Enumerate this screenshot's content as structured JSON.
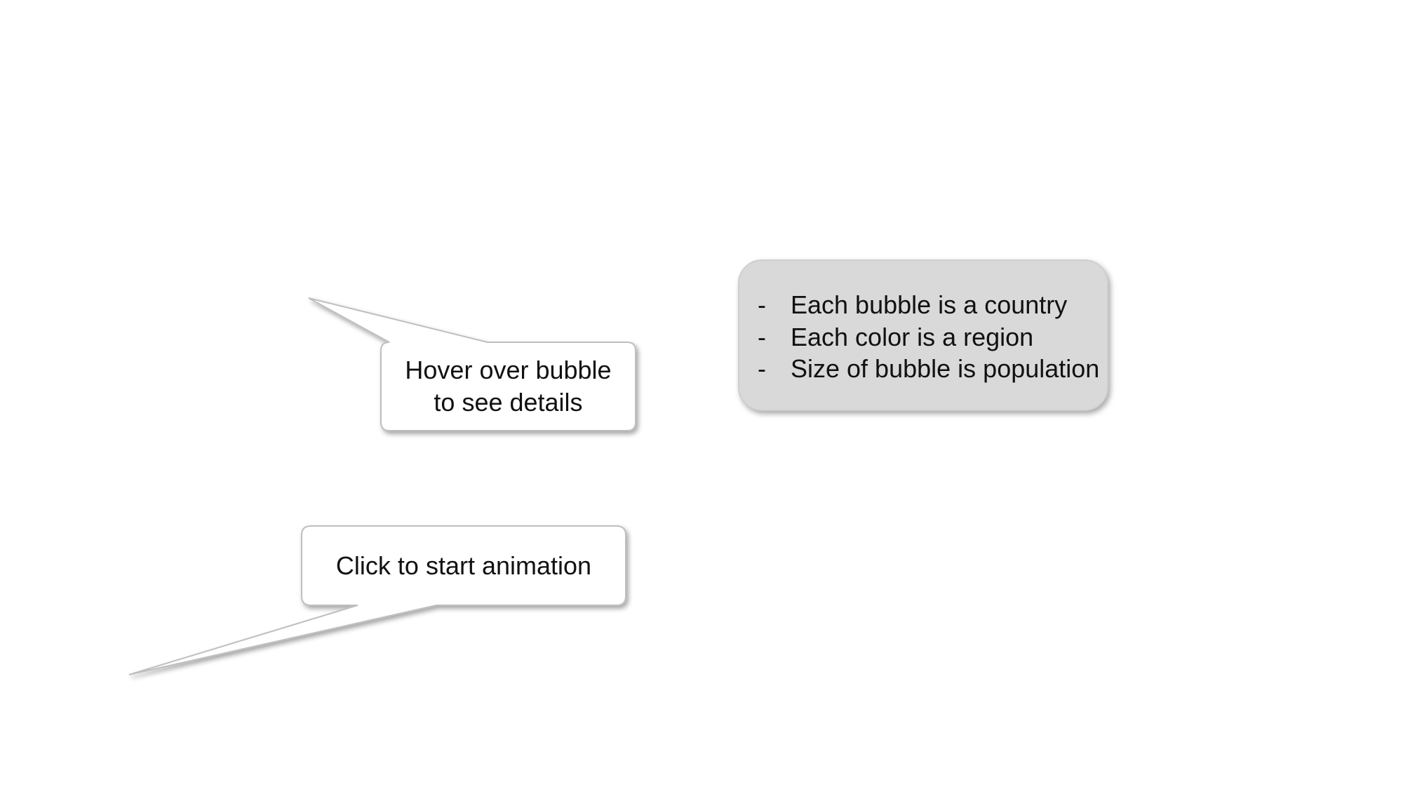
{
  "hover_callout": {
    "line1": "Hover over bubble",
    "line2": "to see details"
  },
  "animation_callout": {
    "label": "Click to start animation"
  },
  "legend": {
    "items": [
      {
        "marker": "-",
        "text": "Each bubble is a country"
      },
      {
        "marker": "-",
        "text": "Each color is a region"
      },
      {
        "marker": "-",
        "text": "Size of bubble is population"
      }
    ]
  },
  "colors": {
    "background": "#ffffff",
    "callout_fill": "#ffffff",
    "callout_border": "#bfbfbf",
    "legend_fill": "#d9d9d9",
    "text": "#111111"
  }
}
